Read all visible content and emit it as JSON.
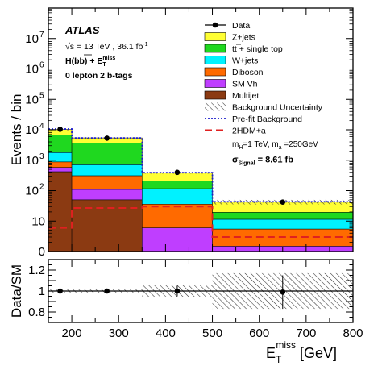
{
  "chart_data": {
    "type": "bar",
    "subtype": "stacked step histogram with ratio panel",
    "x_edges": [
      150,
      200,
      350,
      500,
      800
    ],
    "x_axis": {
      "label_main": "E",
      "label_sub": "T",
      "label_sup": "miss",
      "label_unit": " [GeV]",
      "range": [
        150,
        800
      ],
      "ticks": [
        "200",
        "300",
        "400",
        "500",
        "600",
        "700",
        "800"
      ],
      "tick_values": [
        200,
        300,
        400,
        500,
        600,
        700,
        800
      ]
    },
    "top_panel": {
      "ylabel": "Events / bin",
      "yscale": "log",
      "ylim": [
        1,
        100000000
      ],
      "y_tick_exponents": [
        1,
        2,
        3,
        4,
        5,
        6,
        7
      ],
      "y_tick_base": "10",
      "y_tick_zero_label": "0",
      "y_tick_ten_label": "10",
      "stack_order_bottom_to_top": [
        "Multijet",
        "SM Vh",
        "Diboson",
        "W+jets",
        "tt + single top",
        "Z+jets"
      ],
      "series": [
        {
          "name": "Multijet",
          "color": "#8B3A12",
          "values": [
            420,
            50,
            0,
            0
          ]
        },
        {
          "name": "SM Vh",
          "color": "#BF3EFF",
          "values": [
            160,
            60,
            6,
            1.5
          ]
        },
        {
          "name": "Diboson",
          "color": "#FF6A00",
          "values": [
            300,
            200,
            30,
            4
          ]
        },
        {
          "name": "W+jets",
          "color": "#00F2FF",
          "values": [
            900,
            400,
            80,
            6
          ]
        },
        {
          "name": "tt + single top",
          "color": "#1FD81F",
          "values": [
            5000,
            3000,
            90,
            8
          ]
        },
        {
          "name": "Z+jets",
          "color": "#FFFF33",
          "values": [
            3500,
            1700,
            180,
            23
          ]
        }
      ],
      "data": {
        "name": "Data",
        "values": [
          10400,
          5300,
          400,
          42
        ]
      },
      "prefit_total": [
        10600,
        5400,
        390,
        43
      ],
      "signal": {
        "name": "2HDM+a",
        "values": [
          6,
          27,
          30,
          3
        ]
      },
      "legend": {
        "data": "Data",
        "stack": [
          "Z+jets",
          "tt + single top",
          "W+jets",
          "Diboson",
          "SM Vh",
          "Multijet"
        ],
        "uncertainty": "Background Uncertainty",
        "prefit": "Pre-fit Background",
        "signal": "2HDM+a",
        "mass_label": "m",
        "mass_H_sub": "H",
        "mass_H_value": "=1 TeV, m",
        "mass_a_sub": "a",
        "mass_a_value": " =250GeV",
        "sigma_label": "σ",
        "sigma_sub": "Signal",
        "sigma_value": " = 8.61 fb"
      }
    },
    "ratio_panel": {
      "ylabel": "Data/SM",
      "ylim": [
        0.7,
        1.3
      ],
      "yticks": [
        "0.8",
        "1",
        "1.2"
      ],
      "ytick_values": [
        0.8,
        1.0,
        1.2
      ],
      "x_points": [
        175,
        275,
        425,
        650
      ],
      "values": [
        1.0,
        1.0,
        1.0,
        0.99
      ],
      "errors": [
        0.01,
        0.015,
        0.05,
        0.16
      ],
      "band": [
        0.015,
        0.015,
        0.06,
        0.17
      ]
    },
    "annotations": {
      "experiment": "ATLAS",
      "sqrt_s": "√s = 13 TeV , 36.1 fb",
      "lumi_sup": "-1",
      "channel_line_1": "H(bb) + E",
      "channel_line_1_sup": "miss",
      "channel_line_1_sub": "T",
      "channel_line_2": "0 lepton 2 b-tags"
    },
    "colors": {
      "data": "#000000",
      "prefit": "#1C1CCC",
      "signal": "#E02020",
      "frame": "#000000"
    }
  }
}
